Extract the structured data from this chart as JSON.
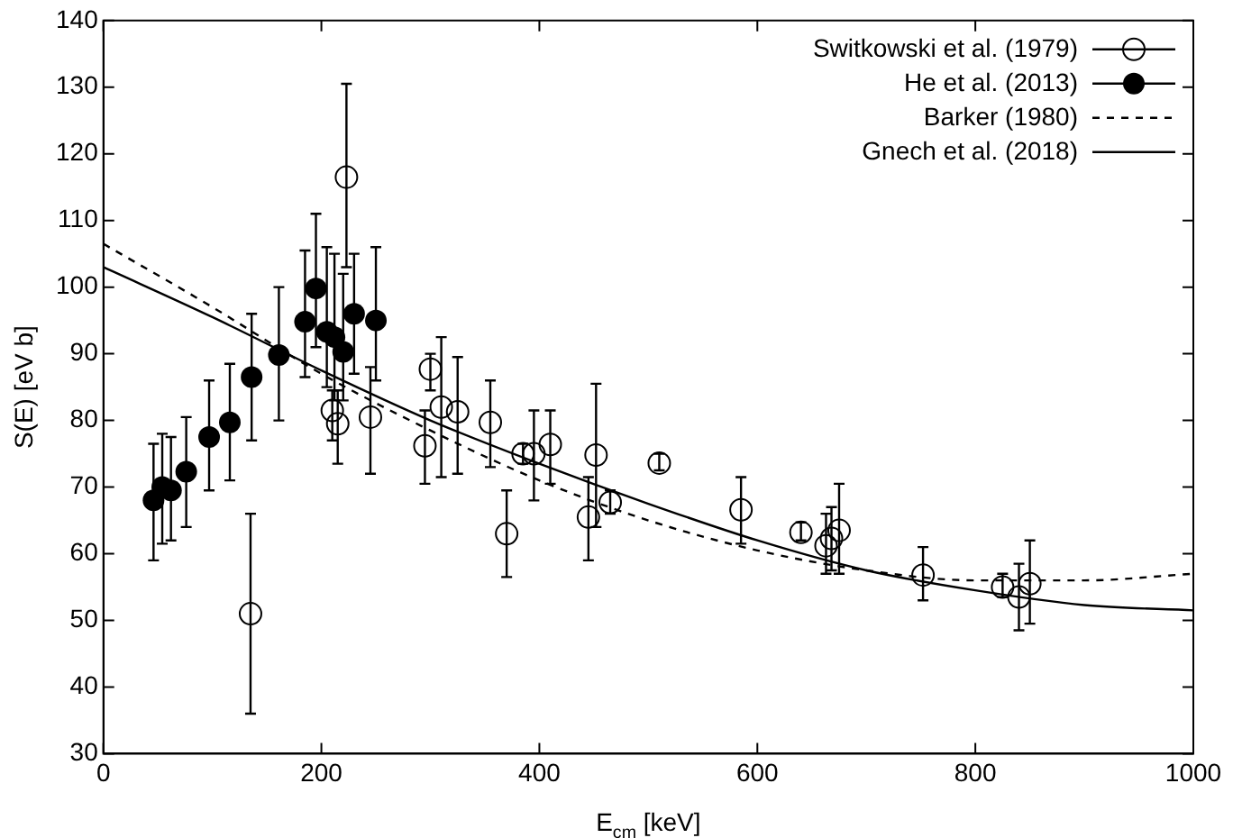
{
  "chart_data": {
    "type": "scatter",
    "xlabel": "E$_{cm}$ [keV]",
    "ylabel": "S(E) [eV b]",
    "xlim": [
      0,
      1000
    ],
    "xticks": [
      0,
      200,
      400,
      600,
      800,
      1000
    ],
    "ylim": [
      30,
      140
    ],
    "yticks": [
      30,
      40,
      50,
      60,
      70,
      80,
      90,
      100,
      110,
      120,
      130,
      140
    ],
    "grid": false,
    "legend": "top right",
    "series": [
      {
        "name": "Switkowski et al. (1979)",
        "marker": "circle",
        "color": "#000000",
        "x": [
          135,
          210,
          215,
          223,
          245,
          295,
          300,
          310,
          325,
          355,
          370,
          385,
          395,
          410,
          445,
          452,
          465,
          510,
          585,
          640,
          663,
          668,
          675,
          752,
          825,
          840,
          850
        ],
        "values": [
          51,
          81.5,
          79.5,
          116.5,
          80.5,
          76.2,
          87.7,
          82,
          81.3,
          79.7,
          63,
          75,
          75,
          76.4,
          65.5,
          74.8,
          67.7,
          73.6,
          66.6,
          63.2,
          61.2,
          62.3,
          63.5,
          56.8,
          55,
          53.5,
          55.5
        ],
        "errors": [
          [
            36,
            66
          ],
          [
            77,
            84.5
          ],
          [
            73.5,
            84.5
          ],
          [
            103,
            130.5
          ],
          [
            72,
            88
          ],
          [
            70.5,
            81.5
          ],
          [
            84.5,
            90
          ],
          [
            71.5,
            92.5
          ],
          [
            72,
            89.5
          ],
          [
            73,
            86
          ],
          [
            56.5,
            69.5
          ],
          [
            73.5,
            76.5
          ],
          [
            68,
            81.5
          ],
          [
            70.5,
            81.5
          ],
          [
            59,
            71.5
          ],
          [
            64,
            85.5
          ],
          [
            66,
            69.5
          ],
          [
            72.5,
            75
          ],
          [
            61.5,
            71.5
          ],
          [
            62,
            64.7
          ],
          [
            57,
            66
          ],
          [
            57.5,
            67
          ],
          [
            57,
            70.5
          ],
          [
            53,
            61
          ],
          [
            53.5,
            57
          ],
          [
            48.5,
            58.5
          ],
          [
            49.5,
            62
          ]
        ]
      },
      {
        "name": "He et al. (2013)",
        "marker": "circle-filled",
        "color": "#000000",
        "x": [
          46,
          54,
          62,
          76,
          97,
          116,
          136,
          161,
          185,
          195,
          205,
          212,
          220,
          230,
          250
        ],
        "values": [
          68,
          70,
          69.5,
          72.3,
          77.5,
          79.7,
          86.5,
          89.8,
          94.8,
          99.8,
          93.3,
          92.5,
          90.3,
          96,
          95
        ],
        "errors": [
          [
            59,
            76.5
          ],
          [
            61.5,
            78
          ],
          [
            62,
            77.5
          ],
          [
            64,
            80.5
          ],
          [
            69.5,
            86
          ],
          [
            71,
            88.5
          ],
          [
            77,
            96
          ],
          [
            80,
            100
          ],
          [
            86.5,
            105.5
          ],
          [
            91,
            111
          ],
          [
            85,
            106
          ],
          [
            83,
            105
          ],
          [
            83,
            102
          ],
          [
            87,
            105
          ],
          [
            86,
            106
          ]
        ]
      },
      {
        "name": "Barker (1980)",
        "type": "line",
        "line_style": "dashed",
        "color": "#000000",
        "x": [
          0,
          100,
          200,
          300,
          400,
          500,
          600,
          700,
          800,
          900,
          1000
        ],
        "values": [
          106.5,
          97,
          87,
          78.5,
          71,
          65,
          60.5,
          57.5,
          56,
          56,
          57
        ]
      },
      {
        "name": "Gnech et al. (2018)",
        "type": "line",
        "line_style": "solid",
        "color": "#000000",
        "x": [
          0,
          100,
          200,
          300,
          400,
          500,
          600,
          700,
          800,
          900,
          1000
        ],
        "values": [
          103,
          95.5,
          87.5,
          80,
          73.5,
          67.5,
          62,
          57.5,
          54.5,
          52.3,
          51.5
        ]
      }
    ]
  }
}
